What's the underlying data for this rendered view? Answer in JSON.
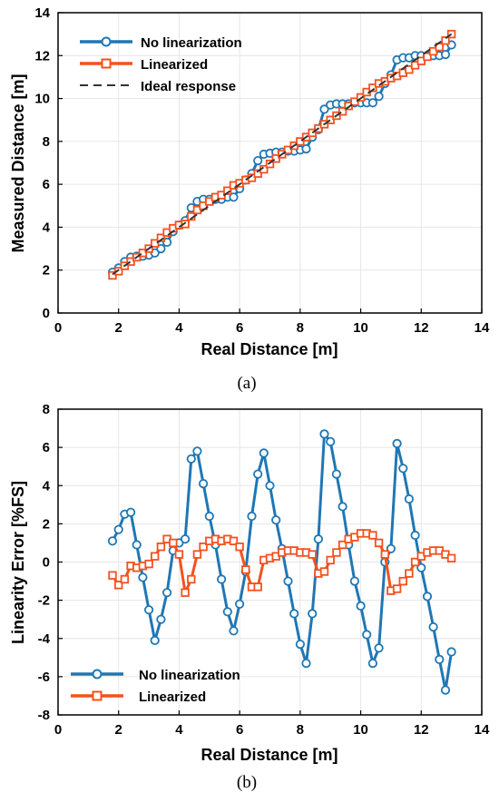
{
  "colors": {
    "no_linearization": "#1f77b4",
    "linearized": "#f4511e",
    "ideal": "#333333"
  },
  "chart_data": [
    {
      "type": "line",
      "panel": "(a)",
      "caption": "(a)",
      "xlabel": "Real Distance [m]",
      "ylabel": "Measured Distance [m]",
      "xlim": [
        0,
        14
      ],
      "ylim": [
        0,
        14
      ],
      "xticks": [
        0,
        2,
        4,
        6,
        8,
        10,
        12,
        14
      ],
      "yticks": [
        0,
        2,
        4,
        6,
        8,
        10,
        12,
        14
      ],
      "grid": true,
      "legend_position": "top-left",
      "series": [
        {
          "name": "No linearization",
          "marker": "circle",
          "x": [
            1.8,
            2.0,
            2.2,
            2.4,
            2.6,
            2.8,
            3.0,
            3.2,
            3.4,
            3.6,
            3.8,
            4.0,
            4.2,
            4.4,
            4.6,
            4.8,
            5.0,
            5.2,
            5.4,
            5.6,
            5.8,
            6.0,
            6.2,
            6.4,
            6.6,
            6.8,
            7.0,
            7.2,
            7.4,
            7.6,
            7.8,
            8.0,
            8.2,
            8.4,
            8.6,
            8.8,
            9.0,
            9.2,
            9.4,
            9.6,
            9.8,
            10.0,
            10.2,
            10.4,
            10.6,
            10.8,
            11.0,
            11.2,
            11.4,
            11.6,
            11.8,
            12.0,
            12.2,
            12.4,
            12.6,
            12.8,
            13.0
          ],
          "y": [
            1.9,
            2.1,
            2.4,
            2.6,
            2.65,
            2.65,
            2.7,
            2.8,
            3.0,
            3.3,
            3.8,
            4.1,
            4.3,
            4.9,
            5.2,
            5.3,
            5.3,
            5.3,
            5.3,
            5.4,
            5.4,
            5.8,
            6.2,
            6.5,
            7.1,
            7.4,
            7.45,
            7.5,
            7.5,
            7.55,
            7.55,
            7.6,
            7.65,
            8.2,
            8.55,
            9.5,
            9.7,
            9.75,
            9.75,
            9.75,
            9.8,
            9.8,
            9.8,
            9.8,
            10.1,
            10.7,
            11.1,
            11.8,
            11.9,
            11.9,
            12.0,
            12.0,
            12.0,
            12.0,
            12.0,
            12.05,
            12.5
          ]
        },
        {
          "name": "Linearized",
          "marker": "square",
          "x": [
            1.8,
            2.0,
            2.2,
            2.4,
            2.6,
            2.8,
            3.0,
            3.2,
            3.4,
            3.6,
            3.8,
            4.0,
            4.2,
            4.4,
            4.6,
            4.8,
            5.0,
            5.2,
            5.4,
            5.6,
            5.8,
            6.0,
            6.2,
            6.4,
            6.6,
            6.8,
            7.0,
            7.2,
            7.4,
            7.6,
            7.8,
            8.0,
            8.2,
            8.4,
            8.6,
            8.8,
            9.0,
            9.2,
            9.4,
            9.6,
            9.8,
            10.0,
            10.2,
            10.4,
            10.6,
            10.8,
            11.0,
            11.2,
            11.4,
            11.6,
            11.8,
            12.0,
            12.2,
            12.4,
            12.6,
            12.8,
            13.0
          ],
          "y": [
            1.75,
            1.95,
            2.2,
            2.4,
            2.6,
            2.8,
            3.0,
            3.25,
            3.5,
            3.75,
            3.95,
            4.1,
            4.15,
            4.5,
            4.8,
            5.0,
            5.2,
            5.4,
            5.5,
            5.7,
            5.95,
            6.05,
            6.2,
            6.3,
            6.5,
            6.7,
            6.95,
            7.2,
            7.4,
            7.6,
            7.8,
            8.0,
            8.2,
            8.4,
            8.6,
            8.8,
            9.0,
            9.2,
            9.4,
            9.65,
            9.85,
            10.05,
            10.3,
            10.5,
            10.7,
            10.8,
            10.95,
            11.05,
            11.2,
            11.35,
            11.55,
            11.75,
            11.95,
            12.2,
            12.4,
            12.7,
            13.0
          ]
        },
        {
          "name": "Ideal response",
          "marker": "none",
          "dashed": true,
          "x": [
            1.8,
            13.0
          ],
          "y": [
            1.8,
            13.0
          ]
        }
      ]
    },
    {
      "type": "line",
      "panel": "(b)",
      "caption": "(b)",
      "xlabel": "Real Distance [m]",
      "ylabel": "Linearity Error [%FS]",
      "xlim": [
        0,
        14
      ],
      "ylim": [
        -8,
        8
      ],
      "xticks": [
        0,
        2,
        4,
        6,
        8,
        10,
        12,
        14
      ],
      "yticks": [
        -8,
        -6,
        -4,
        -2,
        0,
        2,
        4,
        6,
        8
      ],
      "grid": true,
      "legend_position": "bottom-left",
      "series": [
        {
          "name": "No linearization",
          "marker": "circle",
          "x": [
            1.8,
            2.0,
            2.2,
            2.4,
            2.6,
            2.8,
            3.0,
            3.2,
            3.4,
            3.6,
            3.8,
            4.0,
            4.2,
            4.4,
            4.6,
            4.8,
            5.0,
            5.2,
            5.4,
            5.6,
            5.8,
            6.0,
            6.2,
            6.4,
            6.6,
            6.8,
            7.0,
            7.2,
            7.4,
            7.6,
            7.8,
            8.0,
            8.2,
            8.4,
            8.6,
            8.8,
            9.0,
            9.2,
            9.4,
            9.6,
            9.8,
            10.0,
            10.2,
            10.4,
            10.6,
            10.8,
            11.0,
            11.2,
            11.4,
            11.6,
            11.8,
            12.0,
            12.2,
            12.4,
            12.6,
            12.8,
            13.0
          ],
          "y": [
            1.1,
            1.7,
            2.5,
            2.6,
            0.9,
            -0.8,
            -2.5,
            -4.1,
            -3.0,
            -1.6,
            0.6,
            1.0,
            1.2,
            5.4,
            5.8,
            4.1,
            2.4,
            0.9,
            -0.9,
            -2.6,
            -3.6,
            -2.2,
            -0.5,
            2.4,
            4.6,
            5.7,
            4.0,
            2.2,
            0.7,
            -1.0,
            -2.7,
            -4.3,
            -5.3,
            -2.7,
            1.2,
            6.7,
            6.3,
            4.6,
            2.9,
            0.9,
            -1.0,
            -2.3,
            -3.8,
            -5.3,
            -4.5,
            0.0,
            0.7,
            6.2,
            4.9,
            3.3,
            1.4,
            -0.3,
            -1.8,
            -3.4,
            -5.1,
            -6.7,
            -4.7
          ]
        },
        {
          "name": "Linearized",
          "marker": "square",
          "x": [
            1.8,
            2.0,
            2.2,
            2.4,
            2.6,
            2.8,
            3.0,
            3.2,
            3.4,
            3.6,
            3.8,
            4.0,
            4.2,
            4.4,
            4.6,
            4.8,
            5.0,
            5.2,
            5.4,
            5.6,
            5.8,
            6.0,
            6.2,
            6.4,
            6.6,
            6.8,
            7.0,
            7.2,
            7.4,
            7.6,
            7.8,
            8.0,
            8.2,
            8.4,
            8.6,
            8.8,
            9.0,
            9.2,
            9.4,
            9.6,
            9.8,
            10.0,
            10.2,
            10.4,
            10.6,
            10.8,
            11.0,
            11.2,
            11.4,
            11.6,
            11.8,
            12.0,
            12.2,
            12.4,
            12.6,
            12.8,
            13.0
          ],
          "y": [
            -0.7,
            -1.2,
            -0.9,
            -0.2,
            -0.3,
            -0.2,
            -0.1,
            0.3,
            0.8,
            1.2,
            1.0,
            0.4,
            -1.6,
            -0.9,
            0.4,
            0.8,
            1.1,
            1.2,
            1.1,
            1.2,
            1.1,
            0.8,
            -0.4,
            -1.3,
            -1.3,
            0.1,
            0.2,
            0.3,
            0.5,
            0.6,
            0.6,
            0.5,
            0.5,
            0.4,
            -0.6,
            -0.5,
            0.1,
            0.5,
            0.9,
            1.2,
            1.3,
            1.5,
            1.5,
            1.4,
            1.0,
            0.4,
            -1.5,
            -1.4,
            -1.0,
            -0.6,
            0.0,
            0.3,
            0.5,
            0.6,
            0.6,
            0.4,
            0.2
          ]
        }
      ]
    }
  ]
}
